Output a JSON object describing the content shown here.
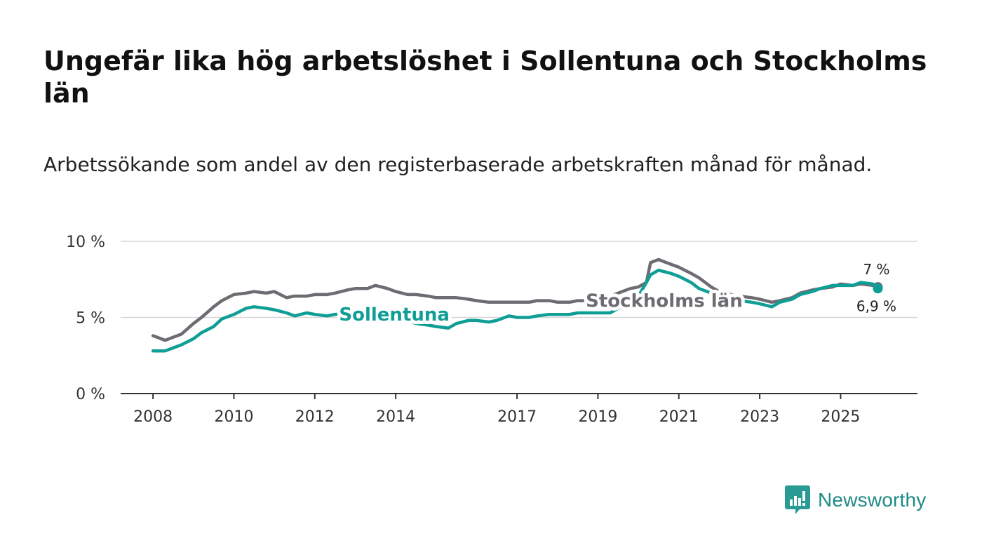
{
  "title": "Ungefär lika hög arbetslöshet i Sollentuna och Stockholms län",
  "subtitle": "Arbetssökande som andel av den registerbaserade arbetskraften månad för månad.",
  "brand": {
    "name": "Newsworthy",
    "icon": "newsworthy-logo-icon",
    "color": "#2a9a95"
  },
  "chart_data": {
    "type": "line",
    "title": "Ungefär lika hög arbetslöshet i Sollentuna och Stockholms län",
    "xlabel": "",
    "ylabel": "",
    "ylim": [
      0,
      10
    ],
    "xlim": [
      2007.2,
      2026.9
    ],
    "grid": true,
    "y_ticks": [
      {
        "value": 0,
        "label": "0 %"
      },
      {
        "value": 5,
        "label": "5 %"
      },
      {
        "value": 10,
        "label": "10 %"
      }
    ],
    "x_ticks": [
      {
        "value": 2008,
        "label": "2008"
      },
      {
        "value": 2010,
        "label": "2010"
      },
      {
        "value": 2012,
        "label": "2012"
      },
      {
        "value": 2014,
        "label": "2014"
      },
      {
        "value": 2017,
        "label": "2017"
      },
      {
        "value": 2019,
        "label": "2019"
      },
      {
        "value": 2021,
        "label": "2021"
      },
      {
        "value": 2023,
        "label": "2023"
      },
      {
        "value": 2025,
        "label": "2025"
      }
    ],
    "series": [
      {
        "name": "Stockholms län",
        "label": "Stockholms län",
        "color": "#6e6c72",
        "end_label": "7 %",
        "x": [
          2008.0,
          2008.3,
          2008.5,
          2008.7,
          2009.0,
          2009.2,
          2009.5,
          2009.7,
          2010.0,
          2010.3,
          2010.5,
          2010.8,
          2011.0,
          2011.3,
          2011.5,
          2011.8,
          2012.0,
          2012.3,
          2012.5,
          2012.8,
          2013.0,
          2013.3,
          2013.5,
          2013.8,
          2014.0,
          2014.3,
          2014.5,
          2014.8,
          2015.0,
          2015.3,
          2015.5,
          2015.8,
          2016.0,
          2016.3,
          2016.5,
          2016.8,
          2017.0,
          2017.3,
          2017.5,
          2017.8,
          2018.0,
          2018.3,
          2018.5,
          2018.8,
          2019.0,
          2019.3,
          2019.5,
          2019.8,
          2020.0,
          2020.2,
          2020.3,
          2020.5,
          2020.8,
          2021.0,
          2021.3,
          2021.5,
          2021.8,
          2022.0,
          2022.3,
          2022.5,
          2022.8,
          2023.0,
          2023.3,
          2023.5,
          2023.8,
          2024.0,
          2024.3,
          2024.5,
          2024.8,
          2025.0,
          2025.3,
          2025.5,
          2025.8,
          2025.92
        ],
        "values": [
          3.8,
          3.5,
          3.7,
          3.9,
          4.6,
          5.0,
          5.7,
          6.1,
          6.5,
          6.6,
          6.7,
          6.6,
          6.7,
          6.3,
          6.4,
          6.4,
          6.5,
          6.5,
          6.6,
          6.8,
          6.9,
          6.9,
          7.1,
          6.9,
          6.7,
          6.5,
          6.5,
          6.4,
          6.3,
          6.3,
          6.3,
          6.2,
          6.1,
          6.0,
          6.0,
          6.0,
          6.0,
          6.0,
          6.1,
          6.1,
          6.0,
          6.0,
          6.1,
          6.1,
          6.3,
          6.4,
          6.6,
          6.9,
          7.0,
          7.3,
          8.6,
          8.8,
          8.5,
          8.3,
          7.9,
          7.6,
          7.0,
          6.7,
          6.5,
          6.4,
          6.3,
          6.2,
          6.0,
          6.1,
          6.3,
          6.6,
          6.8,
          6.9,
          7.0,
          7.2,
          7.1,
          7.2,
          7.1,
          7.0
        ]
      },
      {
        "name": "Sollentuna",
        "label": "Sollentuna",
        "color": "#0f9e96",
        "end_label": "6,9 %",
        "x": [
          2008.0,
          2008.3,
          2008.5,
          2008.7,
          2009.0,
          2009.2,
          2009.5,
          2009.7,
          2010.0,
          2010.3,
          2010.5,
          2010.8,
          2011.0,
          2011.3,
          2011.5,
          2011.8,
          2012.0,
          2012.3,
          2012.5,
          2012.8,
          2013.0,
          2013.3,
          2013.5,
          2013.8,
          2014.0,
          2014.3,
          2014.5,
          2014.8,
          2015.0,
          2015.3,
          2015.5,
          2015.8,
          2016.0,
          2016.3,
          2016.5,
          2016.8,
          2017.0,
          2017.3,
          2017.5,
          2017.8,
          2018.0,
          2018.3,
          2018.5,
          2018.8,
          2019.0,
          2019.3,
          2019.5,
          2019.8,
          2020.0,
          2020.2,
          2020.3,
          2020.5,
          2020.8,
          2021.0,
          2021.3,
          2021.5,
          2021.8,
          2022.0,
          2022.3,
          2022.5,
          2022.8,
          2023.0,
          2023.3,
          2023.5,
          2023.8,
          2024.0,
          2024.3,
          2024.5,
          2024.8,
          2025.0,
          2025.3,
          2025.5,
          2025.8,
          2025.92
        ],
        "values": [
          2.8,
          2.8,
          3.0,
          3.2,
          3.6,
          4.0,
          4.4,
          4.9,
          5.2,
          5.6,
          5.7,
          5.6,
          5.5,
          5.3,
          5.1,
          5.3,
          5.2,
          5.1,
          5.2,
          5.3,
          5.4,
          5.3,
          5.2,
          5.1,
          4.9,
          4.8,
          4.6,
          4.5,
          4.4,
          4.3,
          4.6,
          4.8,
          4.8,
          4.7,
          4.8,
          5.1,
          5.0,
          5.0,
          5.1,
          5.2,
          5.2,
          5.2,
          5.3,
          5.3,
          5.3,
          5.3,
          5.6,
          6.0,
          6.4,
          7.3,
          7.8,
          8.1,
          7.9,
          7.7,
          7.3,
          6.9,
          6.6,
          6.3,
          6.2,
          6.1,
          6.0,
          5.9,
          5.7,
          6.0,
          6.2,
          6.5,
          6.7,
          6.9,
          7.1,
          7.1,
          7.1,
          7.3,
          7.2,
          6.9
        ]
      }
    ],
    "annotations": [
      {
        "text": "Stockholms län",
        "series": "Stockholms län",
        "x": 2018.7,
        "y": 6.1
      },
      {
        "text": "Sollentuna",
        "series": "Sollentuna",
        "x": 2012.6,
        "y": 5.2
      }
    ]
  }
}
